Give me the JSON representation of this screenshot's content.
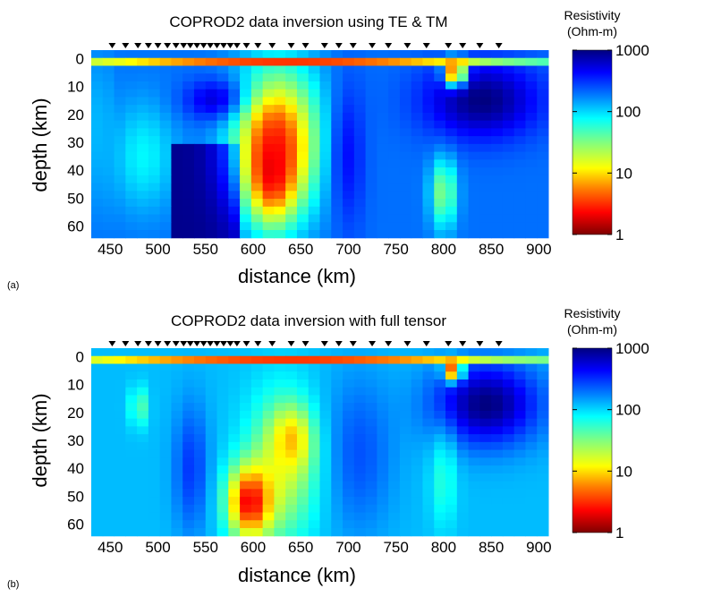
{
  "chart_data": [
    {
      "type": "heatmap",
      "panel_label": "(a)",
      "title": "COPROD2 data inversion using TE & TM",
      "xlabel": "distance (km)",
      "ylabel": "depth (km)",
      "xlim": [
        430,
        910
      ],
      "ylim": [
        63,
        -3
      ],
      "xticks": [
        450,
        500,
        550,
        600,
        650,
        700,
        750,
        800,
        850,
        900
      ],
      "yticks": [
        0,
        10,
        20,
        30,
        40,
        50,
        60
      ],
      "colorbar": {
        "title_line1": "Resistivity",
        "title_line2": "(Ohm-m)",
        "scale": "log",
        "range": [
          1,
          1000
        ],
        "ticks": [
          1,
          10,
          100,
          1000
        ],
        "tick_labels": [
          "1",
          "10",
          "100",
          "1000"
        ]
      },
      "stations_km": [
        452,
        466,
        479,
        490,
        500,
        510,
        519,
        527,
        534,
        541,
        548,
        555,
        562,
        569,
        576,
        583,
        593,
        605,
        620,
        640,
        655,
        675,
        690,
        705,
        725,
        742,
        762,
        782,
        805,
        820,
        838,
        858
      ],
      "model": {
        "description_units": "resistivity in Ohm-m",
        "background": 200,
        "bodies": [
          {
            "kind": "ellipse",
            "cx": 485,
            "cy": 35,
            "rx": 38,
            "ry": 22,
            "value": 80
          },
          {
            "kind": "ellipse",
            "cx": 440,
            "cy": 25,
            "rx": 15,
            "ry": 30,
            "value": 120
          },
          {
            "kind": "band",
            "x0": 520,
            "x1": 585,
            "y0": 30,
            "y1": 63,
            "value": 1000
          },
          {
            "kind": "ellipse",
            "cx": 570,
            "cy": 15,
            "rx": 40,
            "ry": 8,
            "value": 900
          },
          {
            "kind": "ellipse",
            "cx": 625,
            "cy": 30,
            "rx": 48,
            "ry": 28,
            "value": 4
          },
          {
            "kind": "ellipse",
            "cx": 620,
            "cy": 40,
            "rx": 25,
            "ry": 18,
            "value": 2
          },
          {
            "kind": "ellipse",
            "cx": 700,
            "cy": 35,
            "rx": 20,
            "ry": 30,
            "value": 400
          },
          {
            "kind": "ellipse",
            "cx": 800,
            "cy": 48,
            "rx": 15,
            "ry": 14,
            "value": 30
          },
          {
            "kind": "ellipse",
            "cx": 840,
            "cy": 15,
            "rx": 65,
            "ry": 15,
            "value": 1000
          },
          {
            "kind": "ellipse",
            "cx": 640,
            "cy": 1,
            "rx": 300,
            "ry": 1.2,
            "value": 3
          },
          {
            "kind": "ellipse",
            "cx": 812,
            "cy": 5,
            "rx": 12,
            "ry": 5,
            "value": 3
          }
        ]
      }
    },
    {
      "type": "heatmap",
      "panel_label": "(b)",
      "title": "COPROD2 data inversion with full tensor",
      "xlabel": "distance (km)",
      "ylabel": "depth (km)",
      "xlim": [
        430,
        910
      ],
      "ylim": [
        63,
        -3
      ],
      "xticks": [
        450,
        500,
        550,
        600,
        650,
        700,
        750,
        800,
        850,
        900
      ],
      "yticks": [
        0,
        10,
        20,
        30,
        40,
        50,
        60
      ],
      "colorbar": {
        "title_line1": "Resistivity",
        "title_line2": "(Ohm-m)",
        "scale": "log",
        "range": [
          1,
          1000
        ],
        "ticks": [
          1,
          10,
          100,
          1000
        ],
        "tick_labels": [
          "1",
          "10",
          "100",
          "1000"
        ]
      },
      "stations_km": [
        452,
        466,
        479,
        490,
        500,
        510,
        519,
        527,
        534,
        541,
        548,
        555,
        562,
        569,
        576,
        583,
        593,
        605,
        620,
        640,
        655,
        675,
        690,
        705,
        725,
        742,
        762,
        782,
        805,
        820,
        838,
        858
      ],
      "model": {
        "description_units": "resistivity in Ohm-m",
        "background": 120,
        "bodies": [
          {
            "kind": "ellipse",
            "cx": 480,
            "cy": 18,
            "rx": 10,
            "ry": 8,
            "value": 40
          },
          {
            "kind": "ellipse",
            "cx": 535,
            "cy": 40,
            "rx": 20,
            "ry": 25,
            "value": 300
          },
          {
            "kind": "ellipse",
            "cx": 710,
            "cy": 35,
            "rx": 40,
            "ry": 30,
            "value": 250
          },
          {
            "kind": "ellipse",
            "cx": 630,
            "cy": 40,
            "rx": 40,
            "ry": 28,
            "value": 20
          },
          {
            "kind": "ellipse",
            "cx": 640,
            "cy": 30,
            "rx": 22,
            "ry": 12,
            "value": 8
          },
          {
            "kind": "ellipse",
            "cx": 597,
            "cy": 52,
            "rx": 25,
            "ry": 14,
            "value": 2
          },
          {
            "kind": "ellipse",
            "cx": 845,
            "cy": 17,
            "rx": 60,
            "ry": 16,
            "value": 1000
          },
          {
            "kind": "ellipse",
            "cx": 640,
            "cy": 1,
            "rx": 300,
            "ry": 1.2,
            "value": 3
          },
          {
            "kind": "ellipse",
            "cx": 810,
            "cy": 5,
            "rx": 10,
            "ry": 4,
            "value": 3
          },
          {
            "kind": "ellipse",
            "cx": 800,
            "cy": 45,
            "rx": 15,
            "ry": 18,
            "value": 60
          }
        ]
      }
    }
  ]
}
